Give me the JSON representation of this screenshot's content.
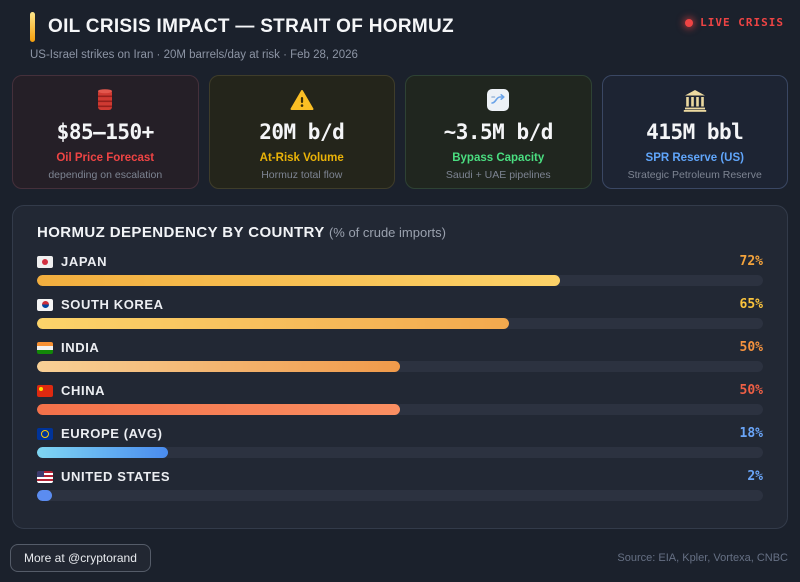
{
  "header": {
    "title": "OIL CRISIS IMPACT — STRAIT OF HORMUZ",
    "subtitle": "US-Israel strikes on Iran · 20M barrels/day at risk · Feb 28, 2026",
    "live_badge": "LIVE CRISIS",
    "live_color": "#ef4444",
    "accent_gradient": [
      "#fde68a",
      "#f59e0b"
    ]
  },
  "cards": [
    {
      "icon": "oil-barrel-icon",
      "value": "$85—150+",
      "label": "Oil Price Forecast",
      "sublabel": "depending on escalation",
      "accent": "#ef4444"
    },
    {
      "icon": "warning-triangle-icon",
      "value": "20M b/d",
      "label": "At-Risk Volume",
      "sublabel": "Hormuz total flow",
      "accent": "#eab308"
    },
    {
      "icon": "bypass-route-icon",
      "value": "~3.5M b/d",
      "label": "Bypass Capacity",
      "sublabel": "Saudi + UAE pipelines",
      "accent": "#4ade80"
    },
    {
      "icon": "bank-icon",
      "value": "415M bbl",
      "label": "SPR Reserve (US)",
      "sublabel": "Strategic Petroleum Reserve",
      "accent": "#60a5fa"
    }
  ],
  "chart": {
    "title": "HORMUZ DEPENDENCY BY COUNTRY",
    "subtitle": "(% of crude imports)",
    "rows": [
      {
        "country": "JAPAN",
        "flag": "jp",
        "pct": 72,
        "pct_label": "72%",
        "bar_from": "#f2ae3e",
        "bar_to": "#fcd268",
        "pct_color": "#f3a33c"
      },
      {
        "country": "SOUTH KOREA",
        "flag": "kr",
        "pct": 65,
        "pct_label": "65%",
        "bar_from": "#fcd46a",
        "bar_to": "#f3a94e",
        "pct_color": "#fbc43d"
      },
      {
        "country": "INDIA",
        "flag": "in",
        "pct": 50,
        "pct_label": "50%",
        "bar_from": "#f8d096",
        "bar_to": "#f09a4a",
        "pct_color": "#f5923e"
      },
      {
        "country": "CHINA",
        "flag": "cn",
        "pct": 50,
        "pct_label": "50%",
        "bar_from": "#f4714a",
        "bar_to": "#fa8f62",
        "pct_color": "#ee5f45"
      },
      {
        "country": "EUROPE (AVG)",
        "flag": "eu",
        "pct": 18,
        "pct_label": "18%",
        "bar_from": "#7fd6f2",
        "bar_to": "#4a8cf0",
        "pct_color": "#6aa5f8"
      },
      {
        "country": "UNITED STATES",
        "flag": "us",
        "pct": 2,
        "pct_label": "2%",
        "bar_from": "#5b8cf0",
        "bar_to": "#5b8cf0",
        "pct_color": "#6aa5f8"
      }
    ]
  },
  "chart_data": {
    "type": "bar",
    "orientation": "horizontal",
    "title": "HORMUZ DEPENDENCY BY COUNTRY (% of crude imports)",
    "categories": [
      "JAPAN",
      "SOUTH KOREA",
      "INDIA",
      "CHINA",
      "EUROPE (AVG)",
      "UNITED STATES"
    ],
    "values": [
      72,
      65,
      50,
      50,
      18,
      2
    ],
    "value_labels": [
      "72%",
      "65%",
      "50%",
      "50%",
      "18%",
      "2%"
    ],
    "unit": "%",
    "xlim": [
      0,
      100
    ],
    "grid": false,
    "legend": false
  },
  "footer": {
    "cta": "More at @cryptorand",
    "source": "Source: EIA, Kpler, Vortexa, CNBC"
  }
}
